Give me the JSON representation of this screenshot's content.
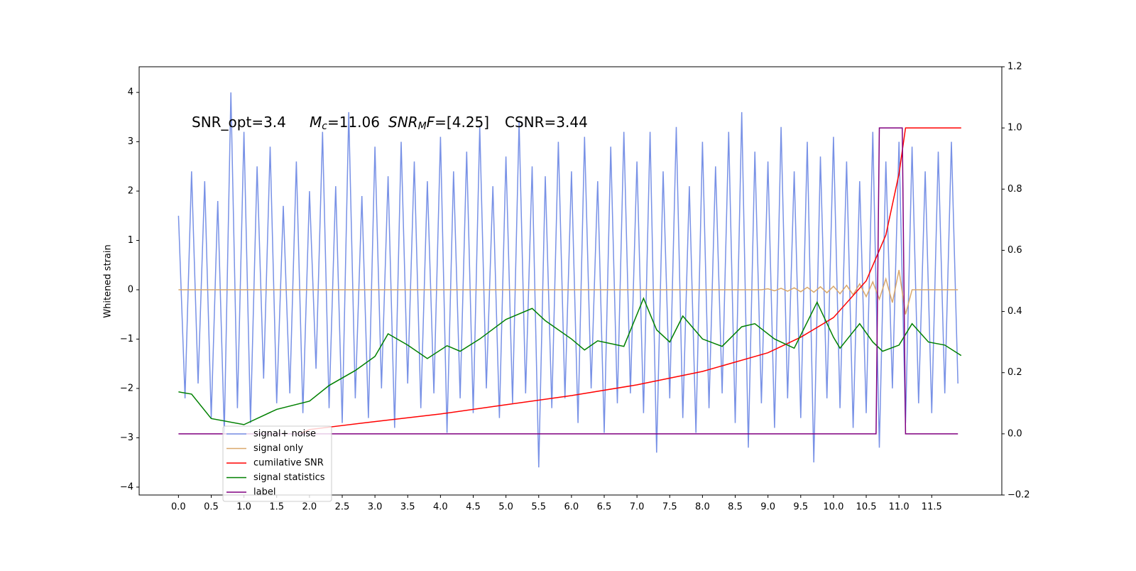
{
  "chart_data": {
    "type": "line",
    "y_label": "Whitened strain",
    "annotations": [
      [
        {
          "text": "SNR_opt=3.4"
        }
      ],
      [
        {
          "text": "M",
          "italic": true
        },
        {
          "text": "c",
          "italic": true,
          "sub": true
        },
        {
          "text": "=11.06"
        }
      ],
      [
        {
          "text": "SNR",
          "italic": true
        },
        {
          "text": "M",
          "italic": true,
          "sub": true
        },
        {
          "text": "F",
          "italic": true
        },
        {
          "text": "=[4.25]"
        }
      ],
      [
        {
          "text": "CSNR=3.44"
        }
      ]
    ],
    "x": [
      0,
      0.1,
      0.2,
      0.3,
      0.4,
      0.5,
      0.6,
      0.7,
      0.8,
      0.9,
      1,
      1.1,
      1.2,
      1.3,
      1.4,
      1.5,
      1.6,
      1.7,
      1.8,
      1.9,
      2,
      2.1,
      2.2,
      2.3,
      2.4,
      2.5,
      2.6,
      2.7,
      2.8,
      2.9,
      3,
      3.1,
      3.2,
      3.3,
      3.4,
      3.5,
      3.6,
      3.7,
      3.8,
      3.9,
      4,
      4.1,
      4.2,
      4.3,
      4.4,
      4.5,
      4.6,
      4.7,
      4.8,
      4.9,
      5,
      5.1,
      5.2,
      5.3,
      5.4,
      5.5,
      5.6,
      5.7,
      5.8,
      5.9,
      6,
      6.1,
      6.2,
      6.3,
      6.4,
      6.5,
      6.6,
      6.7,
      6.8,
      6.9,
      7,
      7.1,
      7.2,
      7.3,
      7.4,
      7.5,
      7.6,
      7.7,
      7.8,
      7.9,
      8,
      8.1,
      8.2,
      8.3,
      8.4,
      8.5,
      8.6,
      8.7,
      8.8,
      8.9,
      9,
      9.1,
      9.2,
      9.3,
      9.4,
      9.5,
      9.6,
      9.7,
      9.8,
      9.9,
      10,
      10.1,
      10.2,
      10.3,
      10.4,
      10.5,
      10.6,
      10.7,
      10.8,
      10.9,
      11,
      11.1,
      11.2,
      11.3,
      11.4,
      11.5,
      11.6,
      11.7,
      11.8,
      11.9
    ],
    "series": [
      {
        "name": "signal+ noise",
        "color": "#7891e6",
        "values": [
          1.5,
          -2.2,
          2.4,
          -1.9,
          2.2,
          -2.6,
          1.8,
          -2.9,
          4.0,
          -2.4,
          3.2,
          -2.7,
          2.5,
          -1.8,
          2.9,
          -2.3,
          1.7,
          -2.1,
          2.6,
          -2.5,
          2.0,
          -1.6,
          3.2,
          -2.4,
          2.1,
          -2.7,
          3.6,
          -2.2,
          1.9,
          -2.6,
          2.9,
          -2.0,
          2.3,
          -2.8,
          3.0,
          -1.9,
          2.6,
          -2.4,
          2.2,
          -2.1,
          3.1,
          -2.9,
          2.4,
          -2.2,
          2.8,
          -2.5,
          3.3,
          -2.0,
          2.1,
          -2.6,
          2.7,
          -2.3,
          3.4,
          -2.1,
          2.5,
          -3.6,
          2.3,
          -2.4,
          3.0,
          -2.2,
          2.4,
          -2.7,
          3.1,
          -2.0,
          2.2,
          -2.9,
          2.9,
          -2.3,
          3.2,
          -2.1,
          2.6,
          -2.5,
          3.2,
          -3.3,
          2.4,
          -2.2,
          3.3,
          -2.6,
          2.1,
          -2.9,
          3.0,
          -2.4,
          2.5,
          -2.1,
          3.2,
          -2.7,
          3.6,
          -3.2,
          2.8,
          -2.3,
          2.6,
          -2.8,
          3.3,
          -2.2,
          2.4,
          -2.6,
          3.0,
          -3.5,
          2.7,
          -2.2,
          3.1,
          -2.4,
          2.6,
          -2.8,
          2.2,
          -2.5,
          3.2,
          -3.2,
          2.6,
          -2.0,
          3.0,
          -2.7,
          2.9,
          -2.3,
          2.4,
          -2.5,
          2.8,
          -2.1,
          3.0,
          -1.9
        ]
      },
      {
        "name": "signal only",
        "color": "#d9a86c",
        "values": [
          0,
          0,
          0,
          0,
          0,
          0,
          0,
          0,
          0,
          0,
          0,
          0,
          0,
          0,
          0,
          0,
          0,
          0,
          0,
          0,
          0,
          0,
          0,
          0,
          0,
          0,
          0,
          0,
          0,
          0,
          0,
          0,
          0,
          0,
          0,
          0,
          0,
          0,
          0,
          0,
          0,
          0,
          0,
          0,
          0,
          0,
          0,
          0,
          0,
          0,
          0,
          0,
          0,
          0,
          0,
          0,
          0,
          0,
          0,
          0,
          0,
          0,
          0,
          0,
          0,
          0,
          0,
          0,
          0,
          0,
          0,
          0,
          0,
          0,
          0,
          0,
          0,
          0,
          0,
          0,
          0,
          0,
          0,
          0,
          0,
          0,
          0,
          0,
          0,
          0,
          0.02,
          -0.02,
          0.03,
          -0.03,
          0.04,
          -0.04,
          0.05,
          -0.05,
          0.06,
          -0.06,
          0.07,
          -0.08,
          0.09,
          -0.1,
          0.12,
          -0.14,
          0.16,
          -0.19,
          0.22,
          -0.26,
          0.4,
          -0.5,
          0,
          0,
          0,
          0,
          0,
          0,
          0,
          0
        ]
      },
      {
        "name": "cumilative SNR",
        "color": "red",
        "axis": "y2",
        "x": [
          1.85,
          2,
          3,
          4,
          5,
          6,
          7,
          8,
          9,
          9.5,
          10,
          10.5,
          10.8,
          11,
          11.1,
          11.95
        ],
        "values": [
          0,
          0.014,
          0.04,
          0.065,
          0.095,
          0.125,
          0.16,
          0.204,
          0.265,
          0.316,
          0.38,
          0.5,
          0.65,
          0.85,
          1.0,
          1.0
        ]
      },
      {
        "name": "signal statistics",
        "color": "green",
        "axis": "y2",
        "x": [
          0,
          0.2,
          0.5,
          1,
          1.5,
          2,
          2.3,
          2.7,
          3,
          3.2,
          3.5,
          3.8,
          4.1,
          4.3,
          4.6,
          5,
          5.4,
          5.6,
          6,
          6.2,
          6.4,
          6.8,
          7.1,
          7.3,
          7.5,
          7.7,
          8,
          8.3,
          8.6,
          8.8,
          9.1,
          9.4,
          9.75,
          10,
          10.1,
          10.4,
          10.6,
          10.75,
          11,
          11.2,
          11.45,
          11.7,
          11.95
        ],
        "values": [
          0.137,
          0.13,
          0.05,
          0.03,
          0.08,
          0.107,
          0.158,
          0.207,
          0.253,
          0.327,
          0.29,
          0.246,
          0.288,
          0.27,
          0.31,
          0.374,
          0.41,
          0.37,
          0.31,
          0.274,
          0.304,
          0.286,
          0.443,
          0.34,
          0.3,
          0.385,
          0.31,
          0.286,
          0.35,
          0.36,
          0.31,
          0.28,
          0.43,
          0.316,
          0.28,
          0.36,
          0.3,
          0.27,
          0.29,
          0.36,
          0.3,
          0.29,
          0.256
        ]
      },
      {
        "name": "label",
        "color": "purple",
        "axis": "y2",
        "x": [
          0,
          10.65,
          10.7,
          11.05,
          11.1,
          11.9
        ],
        "values": [
          0,
          0,
          1,
          1,
          0,
          0
        ]
      }
    ],
    "xlim": [
      -0.6,
      12.57
    ],
    "ylim": [
      -4.16,
      4.52
    ],
    "y2lim": [
      -0.2,
      1.2
    ],
    "xticks": [
      {
        "value": 0,
        "label": "0.0"
      },
      {
        "value": 0.5,
        "label": "0.5"
      },
      {
        "value": 1,
        "label": "1.0"
      },
      {
        "value": 1.5,
        "label": "1.5"
      },
      {
        "value": 2,
        "label": "2.0"
      },
      {
        "value": 2.5,
        "label": "2.5"
      },
      {
        "value": 3,
        "label": "3.0"
      },
      {
        "value": 3.5,
        "label": "3.5"
      },
      {
        "value": 4,
        "label": "4.0"
      },
      {
        "value": 4.5,
        "label": "4.5"
      },
      {
        "value": 5,
        "label": "5.0"
      },
      {
        "value": 5.5,
        "label": "5.5"
      },
      {
        "value": 6,
        "label": "6.0"
      },
      {
        "value": 6.5,
        "label": "6.5"
      },
      {
        "value": 7,
        "label": "7.0"
      },
      {
        "value": 7.5,
        "label": "7.5"
      },
      {
        "value": 8,
        "label": "8.0"
      },
      {
        "value": 8.5,
        "label": "8.5"
      },
      {
        "value": 9,
        "label": "9.0"
      },
      {
        "value": 9.5,
        "label": "9.5"
      },
      {
        "value": 10,
        "label": "10.0"
      },
      {
        "value": 10.5,
        "label": "10.5"
      },
      {
        "value": 11,
        "label": "11.0"
      },
      {
        "value": 11.5,
        "label": "11.5"
      }
    ],
    "yticks": [
      {
        "value": -4,
        "label": "−4"
      },
      {
        "value": -3,
        "label": "−3"
      },
      {
        "value": -2,
        "label": "−2"
      },
      {
        "value": -1,
        "label": "−1"
      },
      0,
      1,
      2,
      3,
      4
    ],
    "y2ticks": [
      {
        "value": -0.2,
        "label": "−0.2"
      },
      {
        "value": 0,
        "label": "0.0"
      },
      {
        "value": 0.2,
        "label": "0.2"
      },
      {
        "value": 0.4,
        "label": "0.4"
      },
      {
        "value": 0.6,
        "label": "0.6"
      },
      {
        "value": 0.8,
        "label": "0.8"
      },
      {
        "value": 1,
        "label": "1.0"
      },
      {
        "value": 1.2,
        "label": "1.2"
      }
    ]
  }
}
